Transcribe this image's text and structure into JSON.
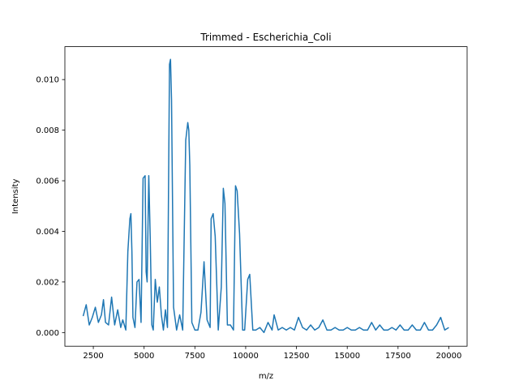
{
  "chart_data": {
    "type": "line",
    "title": "Trimmed - Escherichia_Coli",
    "xlabel": "m/z",
    "ylabel": "Intensity",
    "xlim": [
      1100,
      20900
    ],
    "ylim": [
      -0.00054,
      0.0113
    ],
    "x_ticks": [
      2500,
      5000,
      7500,
      10000,
      12500,
      15000,
      17500,
      20000
    ],
    "x_tick_labels": [
      "2500",
      "5000",
      "7500",
      "10000",
      "12500",
      "15000",
      "17500",
      "20000"
    ],
    "y_ticks": [
      0.0,
      0.002,
      0.004,
      0.006,
      0.008,
      0.01
    ],
    "y_tick_labels": [
      "0.000",
      "0.002",
      "0.004",
      "0.006",
      "0.008",
      "0.010"
    ],
    "grid": false,
    "series": [
      {
        "color": "#1f77b4",
        "x": [
          2000,
          2150,
          2300,
          2450,
          2600,
          2750,
          2900,
          3000,
          3100,
          3250,
          3400,
          3550,
          3700,
          3850,
          3950,
          4100,
          4200,
          4300,
          4350,
          4400,
          4450,
          4550,
          4650,
          4750,
          4850,
          4950,
          5050,
          5100,
          5150,
          5230,
          5300,
          5380,
          5450,
          5550,
          5650,
          5750,
          5850,
          5950,
          6050,
          6150,
          6250,
          6300,
          6350,
          6450,
          6600,
          6750,
          6900,
          7050,
          7150,
          7200,
          7250,
          7350,
          7500,
          7650,
          7800,
          7950,
          8100,
          8250,
          8300,
          8400,
          8500,
          8650,
          8800,
          8900,
          8980,
          9100,
          9250,
          9400,
          9500,
          9580,
          9700,
          9850,
          9950,
          10100,
          10200,
          10350,
          10500,
          10700,
          10900,
          11100,
          11300,
          11400,
          11600,
          11800,
          12000,
          12200,
          12400,
          12600,
          12800,
          13000,
          13200,
          13400,
          13600,
          13800,
          14000,
          14200,
          14400,
          14600,
          14800,
          15000,
          15200,
          15400,
          15600,
          15800,
          16000,
          16200,
          16400,
          16600,
          16800,
          17000,
          17200,
          17400,
          17600,
          17800,
          18000,
          18200,
          18400,
          18600,
          18800,
          19000,
          19200,
          19400,
          19600,
          19800,
          20000
        ],
        "y": [
          0.00065,
          0.0011,
          0.0003,
          0.0006,
          0.001,
          0.0004,
          0.0007,
          0.0013,
          0.0004,
          0.0003,
          0.0014,
          0.0003,
          0.0009,
          0.0002,
          0.0005,
          0.0001,
          0.0032,
          0.0045,
          0.0047,
          0.0032,
          0.0006,
          0.0002,
          0.002,
          0.0021,
          0.0004,
          0.0061,
          0.0062,
          0.0024,
          0.002,
          0.0062,
          0.0038,
          0.0003,
          0.0001,
          0.0021,
          0.0012,
          0.0018,
          0.0007,
          0.0001,
          0.0009,
          0.0002,
          0.0106,
          0.0108,
          0.0092,
          0.001,
          0.0001,
          0.0007,
          0.0001,
          0.0076,
          0.0083,
          0.008,
          0.0066,
          0.0004,
          0.0001,
          0.0001,
          0.0008,
          0.0028,
          0.0005,
          0.0002,
          0.0045,
          0.0047,
          0.0038,
          0.0001,
          0.0018,
          0.0057,
          0.0051,
          0.0003,
          0.0003,
          0.0001,
          0.0058,
          0.0056,
          0.0039,
          0.0001,
          0.0001,
          0.0021,
          0.0023,
          0.0001,
          0.0001,
          0.0002,
          0.0,
          0.0004,
          0.0001,
          0.0007,
          0.0001,
          0.0002,
          0.0001,
          0.0002,
          0.0001,
          0.0006,
          0.0002,
          0.0001,
          0.0003,
          0.0001,
          0.0002,
          0.0005,
          0.0001,
          0.0001,
          0.0002,
          0.0001,
          0.0001,
          0.0002,
          0.0001,
          0.0001,
          0.0002,
          0.0001,
          0.0001,
          0.0004,
          0.0001,
          0.0003,
          0.0001,
          0.0001,
          0.0002,
          0.0001,
          0.0003,
          0.0001,
          0.0001,
          0.0003,
          0.0001,
          0.0001,
          0.0004,
          0.0001,
          0.0001,
          0.0003,
          0.0006,
          0.0001,
          0.0002
        ]
      }
    ]
  }
}
